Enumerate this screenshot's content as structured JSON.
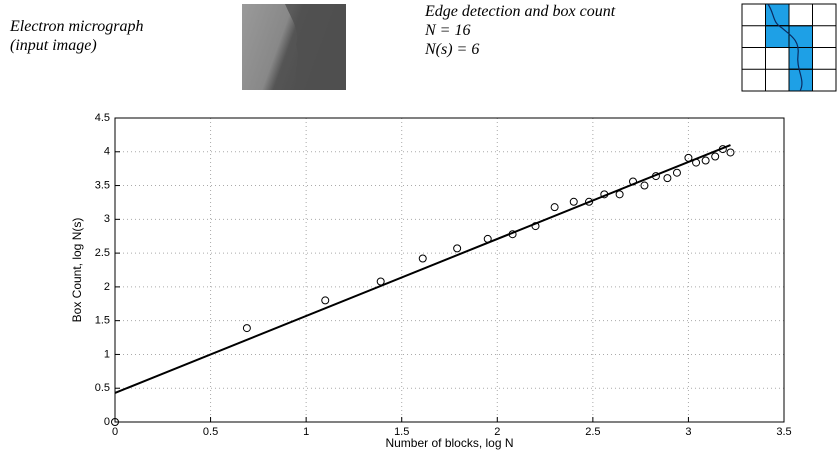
{
  "header": {
    "left": [
      "Electron micrograph",
      "(input image)"
    ],
    "right": [
      "Edge detection and box count",
      "N = 16",
      "N(s) = 6"
    ]
  },
  "chart_data": {
    "type": "scatter",
    "xlabel": "Number of blocks, log N",
    "ylabel": "Box Count, log N(s)",
    "x": [
      0,
      0.69,
      1.1,
      1.39,
      1.61,
      1.79,
      1.95,
      2.08,
      2.2,
      2.3,
      2.4,
      2.48,
      2.56,
      2.64,
      2.71,
      2.77,
      2.83,
      2.89,
      2.94,
      3.0,
      3.04,
      3.09,
      3.14,
      3.18,
      3.22
    ],
    "values": [
      0,
      1.39,
      1.8,
      2.08,
      2.42,
      2.57,
      2.71,
      2.78,
      2.9,
      3.18,
      3.26,
      3.26,
      3.37,
      3.37,
      3.56,
      3.5,
      3.64,
      3.61,
      3.69,
      3.91,
      3.84,
      3.87,
      3.93,
      4.04,
      3.99
    ],
    "color": "#000000",
    "fit": {
      "x": [
        0,
        3.22
      ],
      "values": [
        0.43,
        4.1
      ],
      "color": "#000000"
    },
    "xlim": [
      0,
      3.5
    ],
    "xticks": [
      0,
      0.5,
      1,
      1.5,
      2,
      2.5,
      3,
      3.5
    ],
    "ylim": [
      0,
      4.5
    ],
    "yticks": [
      0,
      0.5,
      1,
      1.5,
      2,
      2.5,
      3,
      3.5,
      4,
      4.5
    ],
    "grid": true
  }
}
